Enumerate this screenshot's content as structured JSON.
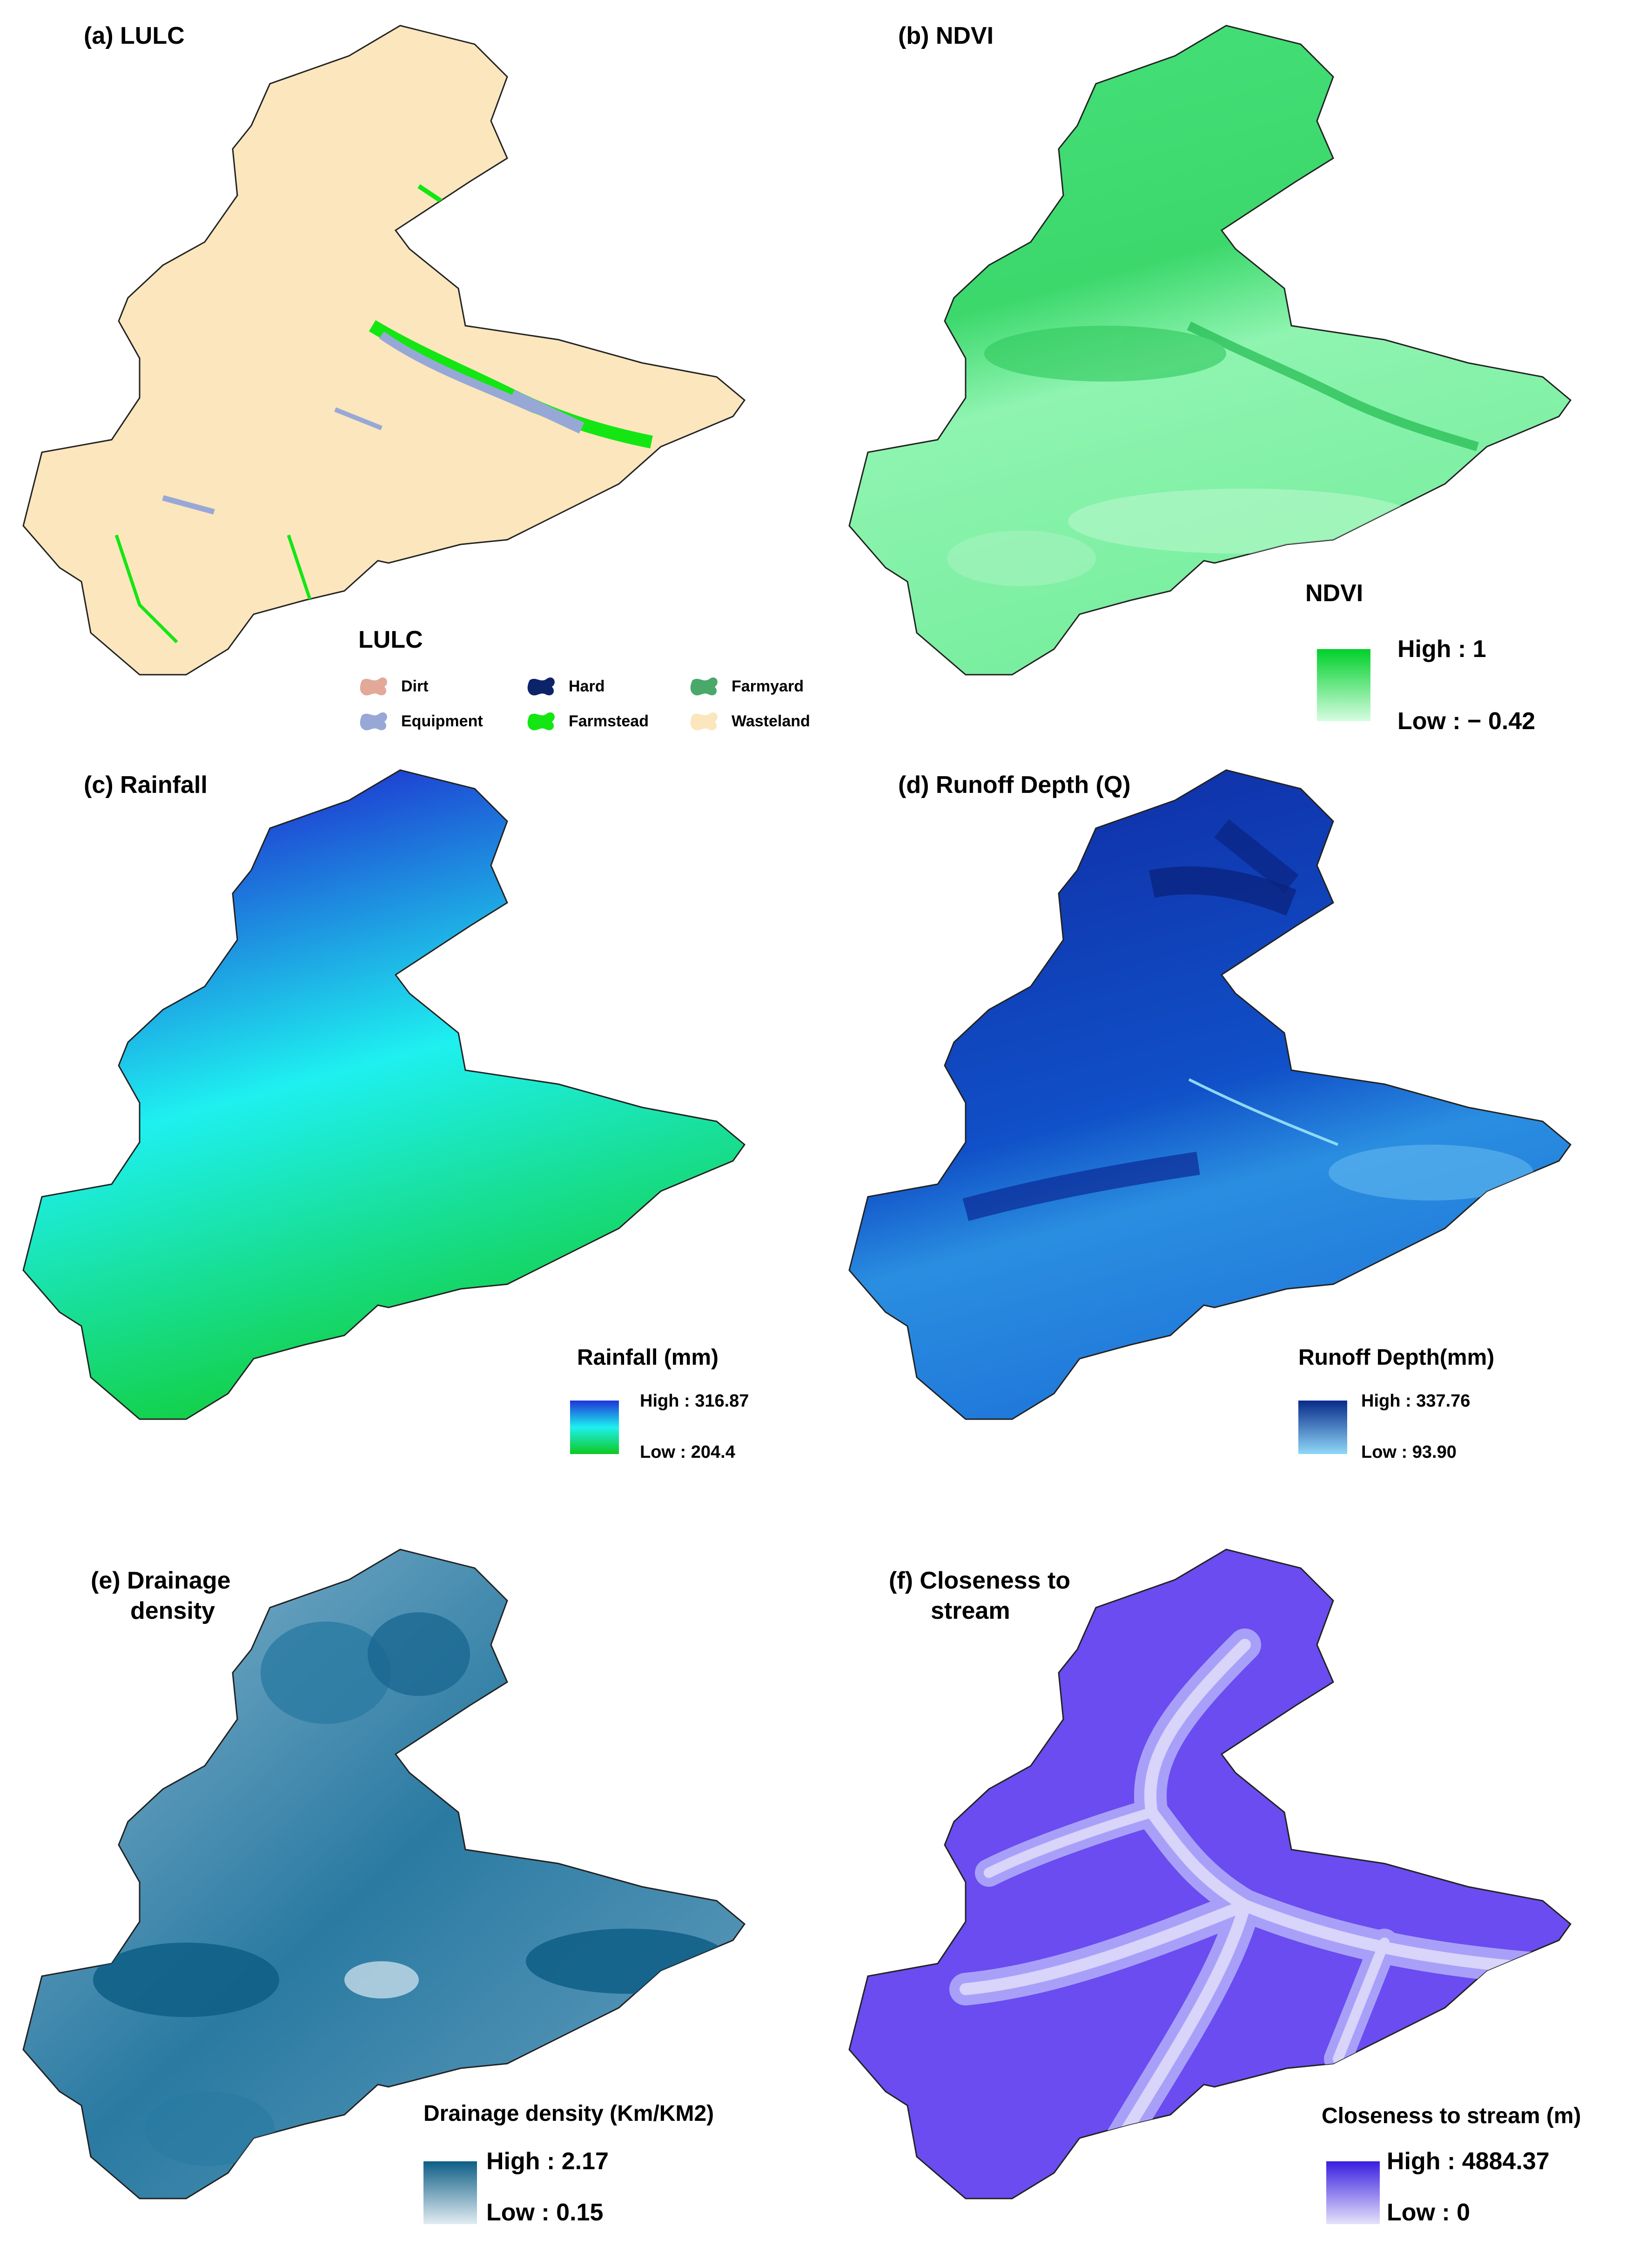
{
  "panels": {
    "a": {
      "title": "(a) LULC",
      "legend": {
        "title": "LULC",
        "classes": [
          {
            "label": "Dirt",
            "color": "#e2a999"
          },
          {
            "label": "Hard",
            "color": "#0d2369"
          },
          {
            "label": "Farmyard",
            "color": "#4aa86a"
          },
          {
            "label": "Equipment",
            "color": "#98a8d6"
          },
          {
            "label": "Farmstead",
            "color": "#14e614"
          },
          {
            "label": "Wasteland",
            "color": "#fbe6bd"
          }
        ]
      }
    },
    "b": {
      "title": "(b) NDVI",
      "legend": {
        "title": "NDVI",
        "high": "High : 1",
        "low": "Low : − 0.42",
        "color_high": "#00d02a",
        "color_low": "#d6fde2"
      }
    },
    "c": {
      "title": "(c) Rainfall",
      "legend": {
        "title": "Rainfall (mm)",
        "high": "High : 316.87",
        "low": "Low : 204.4",
        "color_high": "#1e34d8",
        "color_mid": "#1ef0f0",
        "color_low": "#10c81e"
      }
    },
    "d": {
      "title": "(d) Runoff Depth (Q)",
      "legend": {
        "title": "Runoff Depth(mm)",
        "high": "High : 337.76",
        "low": "Low : 93.90",
        "color_high": "#082a8a",
        "color_low": "#8fd8f8"
      }
    },
    "e": {
      "title_line1": "(e) Drainage",
      "title_line2": "density",
      "legend": {
        "title": "Drainage density (Km/KM2)",
        "high": "High : 2.17",
        "low": "Low : 0.15",
        "color_high": "#0e5e86",
        "color_low": "#e2ecf2"
      }
    },
    "f": {
      "title_line1": "(f) Closeness to",
      "title_line2": "stream",
      "legend": {
        "title": "Closeness to stream (m)",
        "high": "High : 4884.37",
        "low": "Low : 0",
        "color_high": "#3a1ee0",
        "color_low": "#e4e2fa"
      }
    }
  }
}
